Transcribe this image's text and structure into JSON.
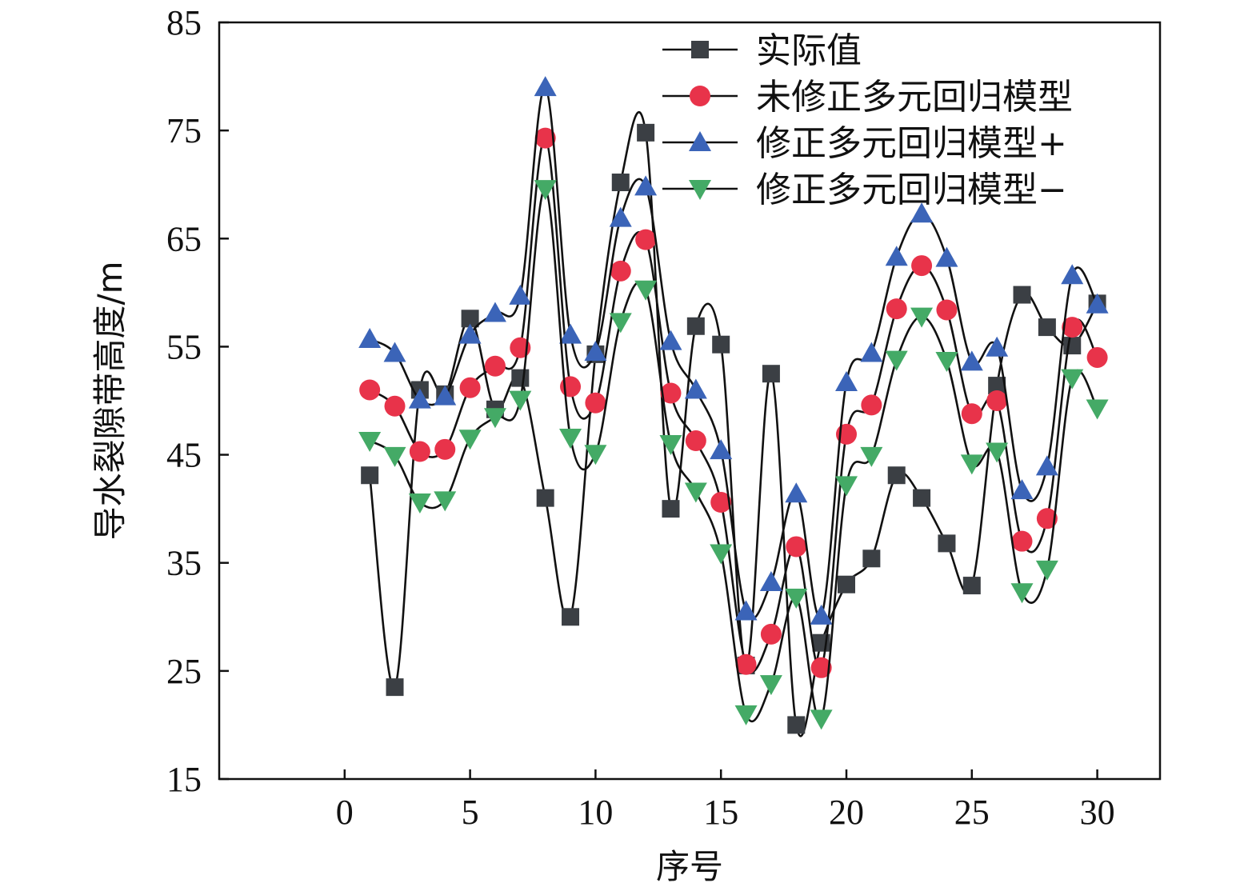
{
  "chart_data": {
    "type": "line",
    "xlabel": "序号",
    "ylabel": "导水裂隙带高度/m",
    "xlim": [
      -5,
      32.5
    ],
    "ylim": [
      15,
      85
    ],
    "xticks": [
      0,
      5,
      10,
      15,
      20,
      25,
      30
    ],
    "yticks": [
      15,
      25,
      35,
      45,
      55,
      65,
      75,
      85
    ],
    "legend_position": "top-right",
    "x": [
      1,
      2,
      3,
      4,
      5,
      6,
      7,
      8,
      9,
      10,
      11,
      12,
      13,
      14,
      15,
      16,
      17,
      18,
      19,
      20,
      21,
      22,
      23,
      24,
      25,
      26,
      27,
      28,
      29,
      30
    ],
    "series": [
      {
        "name": "实际值",
        "marker": "square",
        "color": "#3b3f44",
        "values": [
          43.1,
          23.5,
          51.0,
          50.6,
          57.6,
          49.2,
          52.1,
          41.0,
          30.0,
          54.3,
          70.2,
          74.8,
          40.0,
          56.9,
          55.2,
          25.5,
          52.5,
          20.0,
          27.6,
          33.0,
          35.4,
          43.1,
          41.0,
          36.8,
          32.9,
          51.4,
          59.8,
          56.8,
          55.1,
          59.0
        ]
      },
      {
        "name": "未修正多元回归模型",
        "marker": "circle",
        "color": "#e8334a",
        "values": [
          51.0,
          49.5,
          45.3,
          45.5,
          51.2,
          53.2,
          54.9,
          74.3,
          51.3,
          49.8,
          62.0,
          64.9,
          50.7,
          46.3,
          40.6,
          25.6,
          28.4,
          36.5,
          25.3,
          46.9,
          49.6,
          58.5,
          62.5,
          58.4,
          48.8,
          50.0,
          37.0,
          39.1,
          56.8,
          54.0
        ]
      },
      {
        "name": "修正多元回归模型+",
        "marker": "triangle-up",
        "color": "#3b64b8",
        "values": [
          55.7,
          54.4,
          50.1,
          50.4,
          56.1,
          58.1,
          59.7,
          79.0,
          56.1,
          54.5,
          66.9,
          69.8,
          55.5,
          51.0,
          45.4,
          30.5,
          33.2,
          41.4,
          30.1,
          51.7,
          54.4,
          63.3,
          67.3,
          63.2,
          53.6,
          54.9,
          41.7,
          43.9,
          61.6,
          58.9
        ]
      },
      {
        "name": "修正多元回归模型−",
        "marker": "triangle-down",
        "color": "#44aa66",
        "values": [
          46.3,
          44.9,
          40.6,
          40.8,
          46.5,
          48.5,
          50.1,
          69.6,
          46.6,
          45.1,
          57.3,
          60.3,
          46.0,
          41.6,
          35.9,
          21.0,
          23.8,
          31.8,
          20.6,
          42.2,
          44.9,
          53.8,
          57.8,
          53.7,
          44.2,
          45.3,
          32.3,
          34.4,
          52.1,
          49.3
        ]
      }
    ]
  }
}
